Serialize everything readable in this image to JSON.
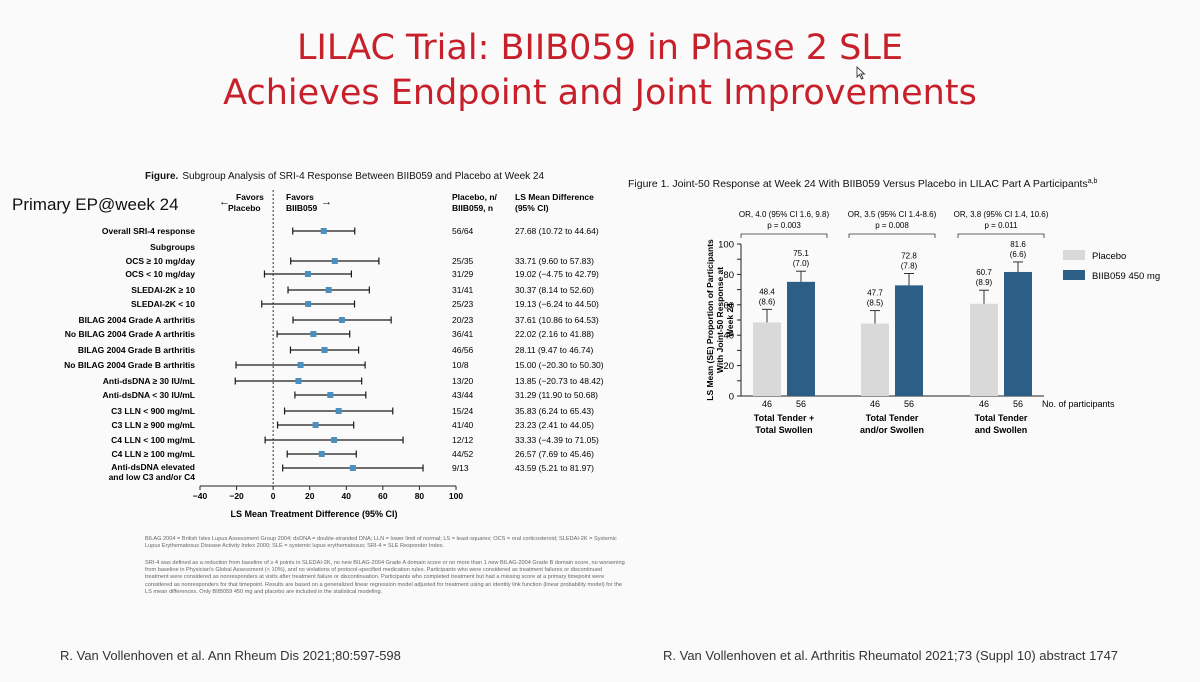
{
  "slide": {
    "title_line1": "LILAC Trial: BIIB059 in Phase 2 SLE",
    "title_line2": "Achieves Endpoint and Joint Improvements",
    "primary_label": "Primary EP@week 24",
    "cite_left": "R. Van Vollenhoven et al. Ann Rheum Dis 2021;80:597-598",
    "cite_right": "R. Van Vollenhoven et al. Arthritis Rheumatol 2021;73 (Suppl 10) abstract 1747"
  },
  "colors": {
    "accent_title": "#c8202a",
    "biib059": "#2d5f86",
    "placebo": "#d9d9d9",
    "marker": "#4a8fc0"
  },
  "forest": {
    "figure_label": "Figure.",
    "figure_title": "Subgroup Analysis of SRI-4 Response Between BIIB059 and Placebo at Week 24",
    "favors_left": "Favors Placebo",
    "favors_right": "Favors BIIB059",
    "col_n_header": "Placebo, n/ BIIB059, n",
    "col_diff_header": "LS Mean Difference (95% CI)",
    "subgroups_header": "Subgroups",
    "xlabel": "LS Mean Treatment Difference (95% CI)",
    "footnote1": "BILAG 2004 = British Isles Lupus Assessment Group 2004; dsDNA = double-stranded DNA; LLN = lower limit of normal; LS = least-squares; OCS = oral corticosteroid; SLEDAI-2K = Systemic Lupus Erythematosus Disease Activity Index 2000; SLE = systemic lupus erythematosus; SRI-4 = SLE Responder Index.",
    "footnote2": "SRI-4 was defined as a reduction from baseline of ≥ 4 points in SLEDAI-2K, no new BILAG-2004 Grade A domain score or no more than 1 new BILAG-2004 Grade B domain score, no worsening from baseline in Physician's Global Assessment (< 10%), and no violations of protocol-specified medication rules. Participants who were considered as treatment failures or discontinued treatment were considered as nonresponders at visits after treatment failure or discontinuation. Participants who completed treatment but had a missing score at a primary timepoint were considered as nonresponders for that timepoint. Results are based on a generalized linear regression model adjusted for treatment using an identity link function (linear probability model) for the LS mean differences. Only BIIB059 450 mg and placebo are included in the statistical modeling."
  },
  "chart_data": [
    {
      "type": "scatter",
      "title": "Subgroup Analysis of SRI-4 Response Between BIIB059 and Placebo at Week 24",
      "xlabel": "LS Mean Treatment Difference (95% CI)",
      "xlim": [
        -40,
        100
      ],
      "xticks": [
        -40,
        -20,
        0,
        20,
        40,
        60,
        80,
        100
      ],
      "rows": [
        {
          "label": "Overall SRI-4 response",
          "n": "56/64",
          "ci_text": "27.68 (10.72 to 44.64)",
          "est": 27.68,
          "lo": 10.72,
          "hi": 44.64
        },
        {
          "label": "OCS ≥ 10 mg/day",
          "n": "25/35",
          "ci_text": "33.71 (9.60 to 57.83)",
          "est": 33.71,
          "lo": 9.6,
          "hi": 57.83
        },
        {
          "label": "OCS < 10 mg/day",
          "n": "31/29",
          "ci_text": "19.02 (−4.75 to 42.79)",
          "est": 19.02,
          "lo": -4.75,
          "hi": 42.79
        },
        {
          "label": "SLEDAI-2K ≥ 10",
          "n": "31/41",
          "ci_text": "30.37 (8.14 to 52.60)",
          "est": 30.37,
          "lo": 8.14,
          "hi": 52.6
        },
        {
          "label": "SLEDAI-2K < 10",
          "n": "25/23",
          "ci_text": "19.13 (−6.24 to 44.50)",
          "est": 19.13,
          "lo": -6.24,
          "hi": 44.5
        },
        {
          "label": "BILAG 2004 Grade A arthritis",
          "n": "20/23",
          "ci_text": "37.61 (10.86 to 64.53)",
          "est": 37.61,
          "lo": 10.86,
          "hi": 64.53
        },
        {
          "label": "No BILAG 2004 Grade A arthritis",
          "n": "36/41",
          "ci_text": "22.02 (2.16 to 41.88)",
          "est": 22.02,
          "lo": 2.16,
          "hi": 41.88
        },
        {
          "label": "BILAG 2004 Grade B arthritis",
          "n": "46/56",
          "ci_text": "28.11 (9.47 to 46.74)",
          "est": 28.11,
          "lo": 9.47,
          "hi": 46.74
        },
        {
          "label": "No BILAG 2004 Grade B arthritis",
          "n": "10/8",
          "ci_text": "15.00 (−20.30 to 50.30)",
          "est": 15.0,
          "lo": -20.3,
          "hi": 50.3
        },
        {
          "label": "Anti-dsDNA ≥ 30 IU/mL",
          "n": "13/20",
          "ci_text": "13.85 (−20.73 to 48.42)",
          "est": 13.85,
          "lo": -20.73,
          "hi": 48.42
        },
        {
          "label": "Anti-dsDNA < 30 IU/mL",
          "n": "43/44",
          "ci_text": "31.29 (11.90 to 50.68)",
          "est": 31.29,
          "lo": 11.9,
          "hi": 50.68
        },
        {
          "label": "C3 LLN < 900 mg/mL",
          "n": "15/24",
          "ci_text": "35.83 (6.24 to 65.43)",
          "est": 35.83,
          "lo": 6.24,
          "hi": 65.43
        },
        {
          "label": "C3 LLN ≥ 900 mg/mL",
          "n": "41/40",
          "ci_text": "23.23 (2.41 to 44.05)",
          "est": 23.23,
          "lo": 2.41,
          "hi": 44.05
        },
        {
          "label": "C4 LLN < 100 mg/mL",
          "n": "12/12",
          "ci_text": "33.33 (−4.39 to 71.05)",
          "est": 33.33,
          "lo": -4.39,
          "hi": 71.05
        },
        {
          "label": "C4 LLN ≥ 100 mg/mL",
          "n": "44/52",
          "ci_text": "26.57 (7.69 to 45.46)",
          "est": 26.57,
          "lo": 7.69,
          "hi": 45.46
        },
        {
          "label": "Anti-dsDNA elevated and low C3 and/or C4",
          "n": "9/13",
          "ci_text": "43.59 (5.21 to 81.97)",
          "est": 43.59,
          "lo": 5.21,
          "hi": 81.97
        }
      ]
    },
    {
      "type": "bar",
      "title": "Figure 1. Joint-50 Response at Week 24 With BIIB059 Versus Placebo in LILAC Part A Participants",
      "title_sup": "a,b",
      "ylabel": "LS Mean (SE) Proportion of Participants With Joint-50 Response at Week 24",
      "ylim": [
        0,
        100
      ],
      "yticks": [
        0,
        10,
        20,
        30,
        40,
        50,
        60,
        70,
        80,
        90,
        100
      ],
      "n_label": "No. of participants",
      "legend_position": "right",
      "categories": [
        "Total Tender + Total Swollen",
        "Total Tender and/or Swollen",
        "Total Tender and Swollen"
      ],
      "or_labels": [
        "OR, 4.0 (95% CI 1.6, 9.8)",
        "OR, 3.5 (95% CI 1.4-8.6)",
        "OR, 3.8 (95% CI 1.4, 10.6)"
      ],
      "p_labels": [
        "p = 0.003",
        "p = 0.008",
        "p = 0.011"
      ],
      "series": [
        {
          "name": "Placebo",
          "values": [
            48.4,
            47.7,
            60.7
          ],
          "se": [
            8.6,
            8.5,
            8.9
          ],
          "n": [
            46,
            46,
            46
          ],
          "mean_labels": [
            "48.4",
            "47.7",
            "60.7"
          ],
          "se_labels": [
            "(8.6)",
            "(8.5)",
            "(8.9)"
          ]
        },
        {
          "name": "BIIB059 450 mg",
          "values": [
            75.1,
            72.8,
            81.6
          ],
          "se": [
            7.0,
            7.8,
            6.6
          ],
          "n": [
            56,
            56,
            56
          ],
          "mean_labels": [
            "75.1",
            "72.8",
            "81.6"
          ],
          "se_labels": [
            "(7.0)",
            "(7.8)",
            "(6.6)"
          ]
        }
      ]
    }
  ]
}
